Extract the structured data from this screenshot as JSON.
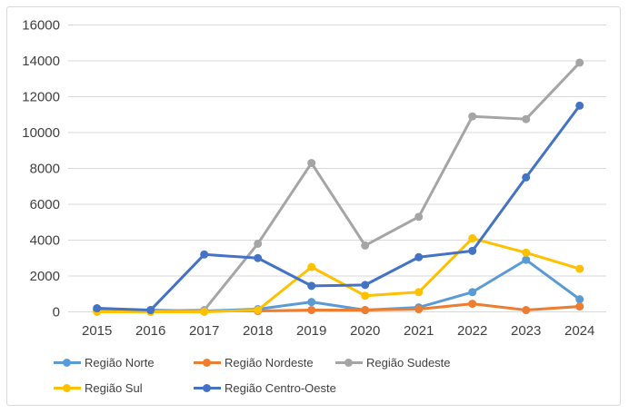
{
  "chart": {
    "background": "#FFFFFF",
    "border_color": "#D9D9D9",
    "gridline_color": "#D9D9D9",
    "text_color": "#404040",
    "title": ""
  },
  "chart_data": {
    "type": "line",
    "title": "",
    "xlabel": "",
    "ylabel": "",
    "x": [
      "2015",
      "2016",
      "2017",
      "2018",
      "2019",
      "2020",
      "2021",
      "2022",
      "2023",
      "2024"
    ],
    "yticks": [
      0,
      2000,
      4000,
      6000,
      8000,
      10000,
      12000,
      14000,
      16000
    ],
    "ylim": [
      0,
      16000
    ],
    "grid": true,
    "legend_position": "bottom",
    "series": [
      {
        "name": "Região Norte",
        "color": "#5B9BD5",
        "values": [
          100,
          100,
          50,
          150,
          550,
          100,
          250,
          1100,
          2900,
          700
        ]
      },
      {
        "name": "Região Nordeste",
        "color": "#ED7D31",
        "values": [
          50,
          50,
          50,
          50,
          100,
          100,
          150,
          450,
          100,
          300
        ]
      },
      {
        "name": "Região Sudeste",
        "color": "#A5A5A5",
        "values": [
          100,
          50,
          100,
          3800,
          8300,
          3700,
          5300,
          10900,
          10750,
          13900
        ]
      },
      {
        "name": "Região Sul",
        "color": "#FFC000",
        "values": [
          0,
          0,
          0,
          100,
          2500,
          900,
          1100,
          4100,
          3300,
          2400
        ]
      },
      {
        "name": "Região Centro-Oeste",
        "color": "#4472C4",
        "values": [
          200,
          100,
          3200,
          3000,
          1450,
          1500,
          3050,
          3400,
          7500,
          11500
        ]
      }
    ]
  }
}
